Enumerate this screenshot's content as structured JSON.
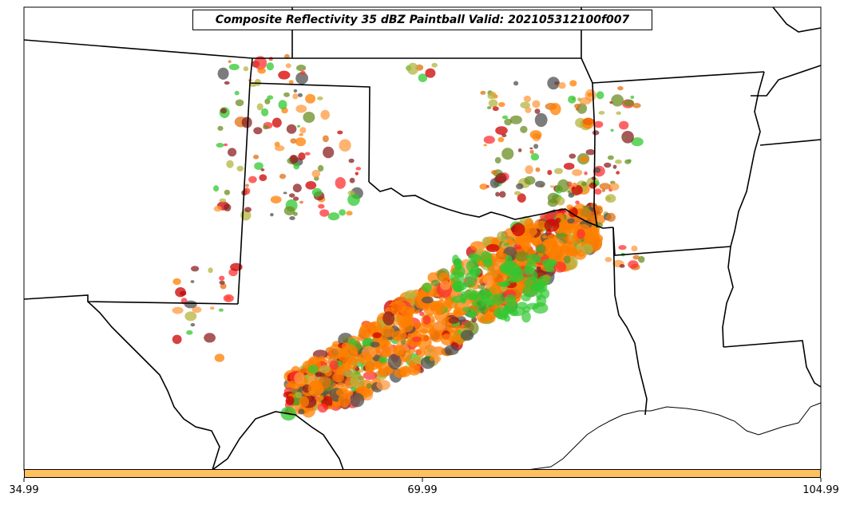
{
  "title": "Composite Reflectivity 35 dBZ Paintball Valid: 202105312100f007",
  "colorbar": {
    "color": "#ffc060",
    "ticks": [
      "34.99",
      "69.99",
      "104.99"
    ]
  },
  "colors": {
    "member_palette": [
      "#ff3030",
      "#e07010",
      "#ff9a40",
      "#30c830",
      "#b4b440",
      "#8b2020",
      "#505050",
      "#ff7f00",
      "#cc0000",
      "#6b8e23"
    ],
    "boundary": "#000000"
  }
}
